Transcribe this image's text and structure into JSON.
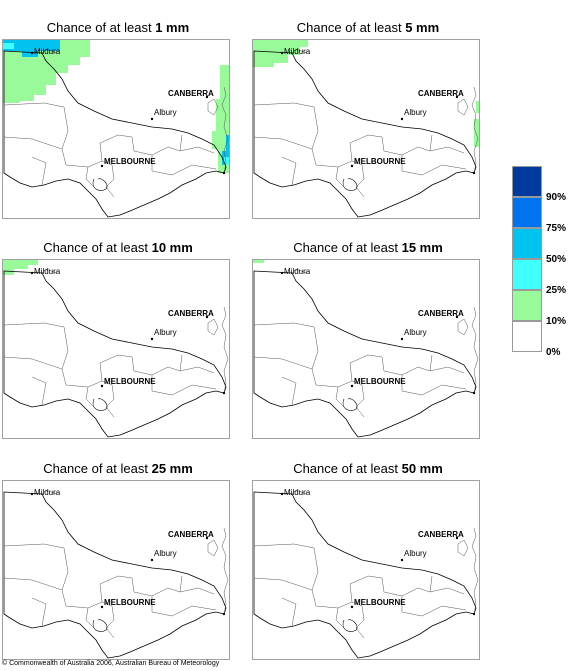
{
  "panels": [
    {
      "prefix": "Chance of at least",
      "amount": "1 mm",
      "coverage": "heavy"
    },
    {
      "prefix": "Chance of at least",
      "amount": "5 mm",
      "coverage": "medium"
    },
    {
      "prefix": "Chance of at least",
      "amount": "10 mm",
      "coverage": "light"
    },
    {
      "prefix": "Chance of at least",
      "amount": "15 mm",
      "coverage": "trace"
    },
    {
      "prefix": "Chance of at least",
      "amount": "25 mm",
      "coverage": "none"
    },
    {
      "prefix": "Chance of at least",
      "amount": "50 mm",
      "coverage": "none"
    }
  ],
  "places": {
    "mildura": "Mildura",
    "canberra": "CANBERRA",
    "albury": "Albury",
    "melbourne": "MELBOURNE"
  },
  "legend": {
    "bands": [
      {
        "color": "#003a9e"
      },
      {
        "color": "#0073f0"
      },
      {
        "color": "#00c3f0"
      },
      {
        "color": "#3fffff"
      },
      {
        "color": "#98fa98"
      },
      {
        "color": "#ffffff"
      }
    ],
    "ticks": [
      "90%",
      "75%",
      "50%",
      "25%",
      "10%",
      "0%"
    ]
  },
  "colors": {
    "ten_pct": "#98fa98",
    "twenty_five_pct": "#3fffff",
    "fifty_pct": "#00c3f0",
    "boundary": "#000000",
    "frame": "#a0a0a0"
  },
  "footer": {
    "copyright": "© Commonwealth of Australia 2006, Australian Bureau of Meteorology"
  }
}
